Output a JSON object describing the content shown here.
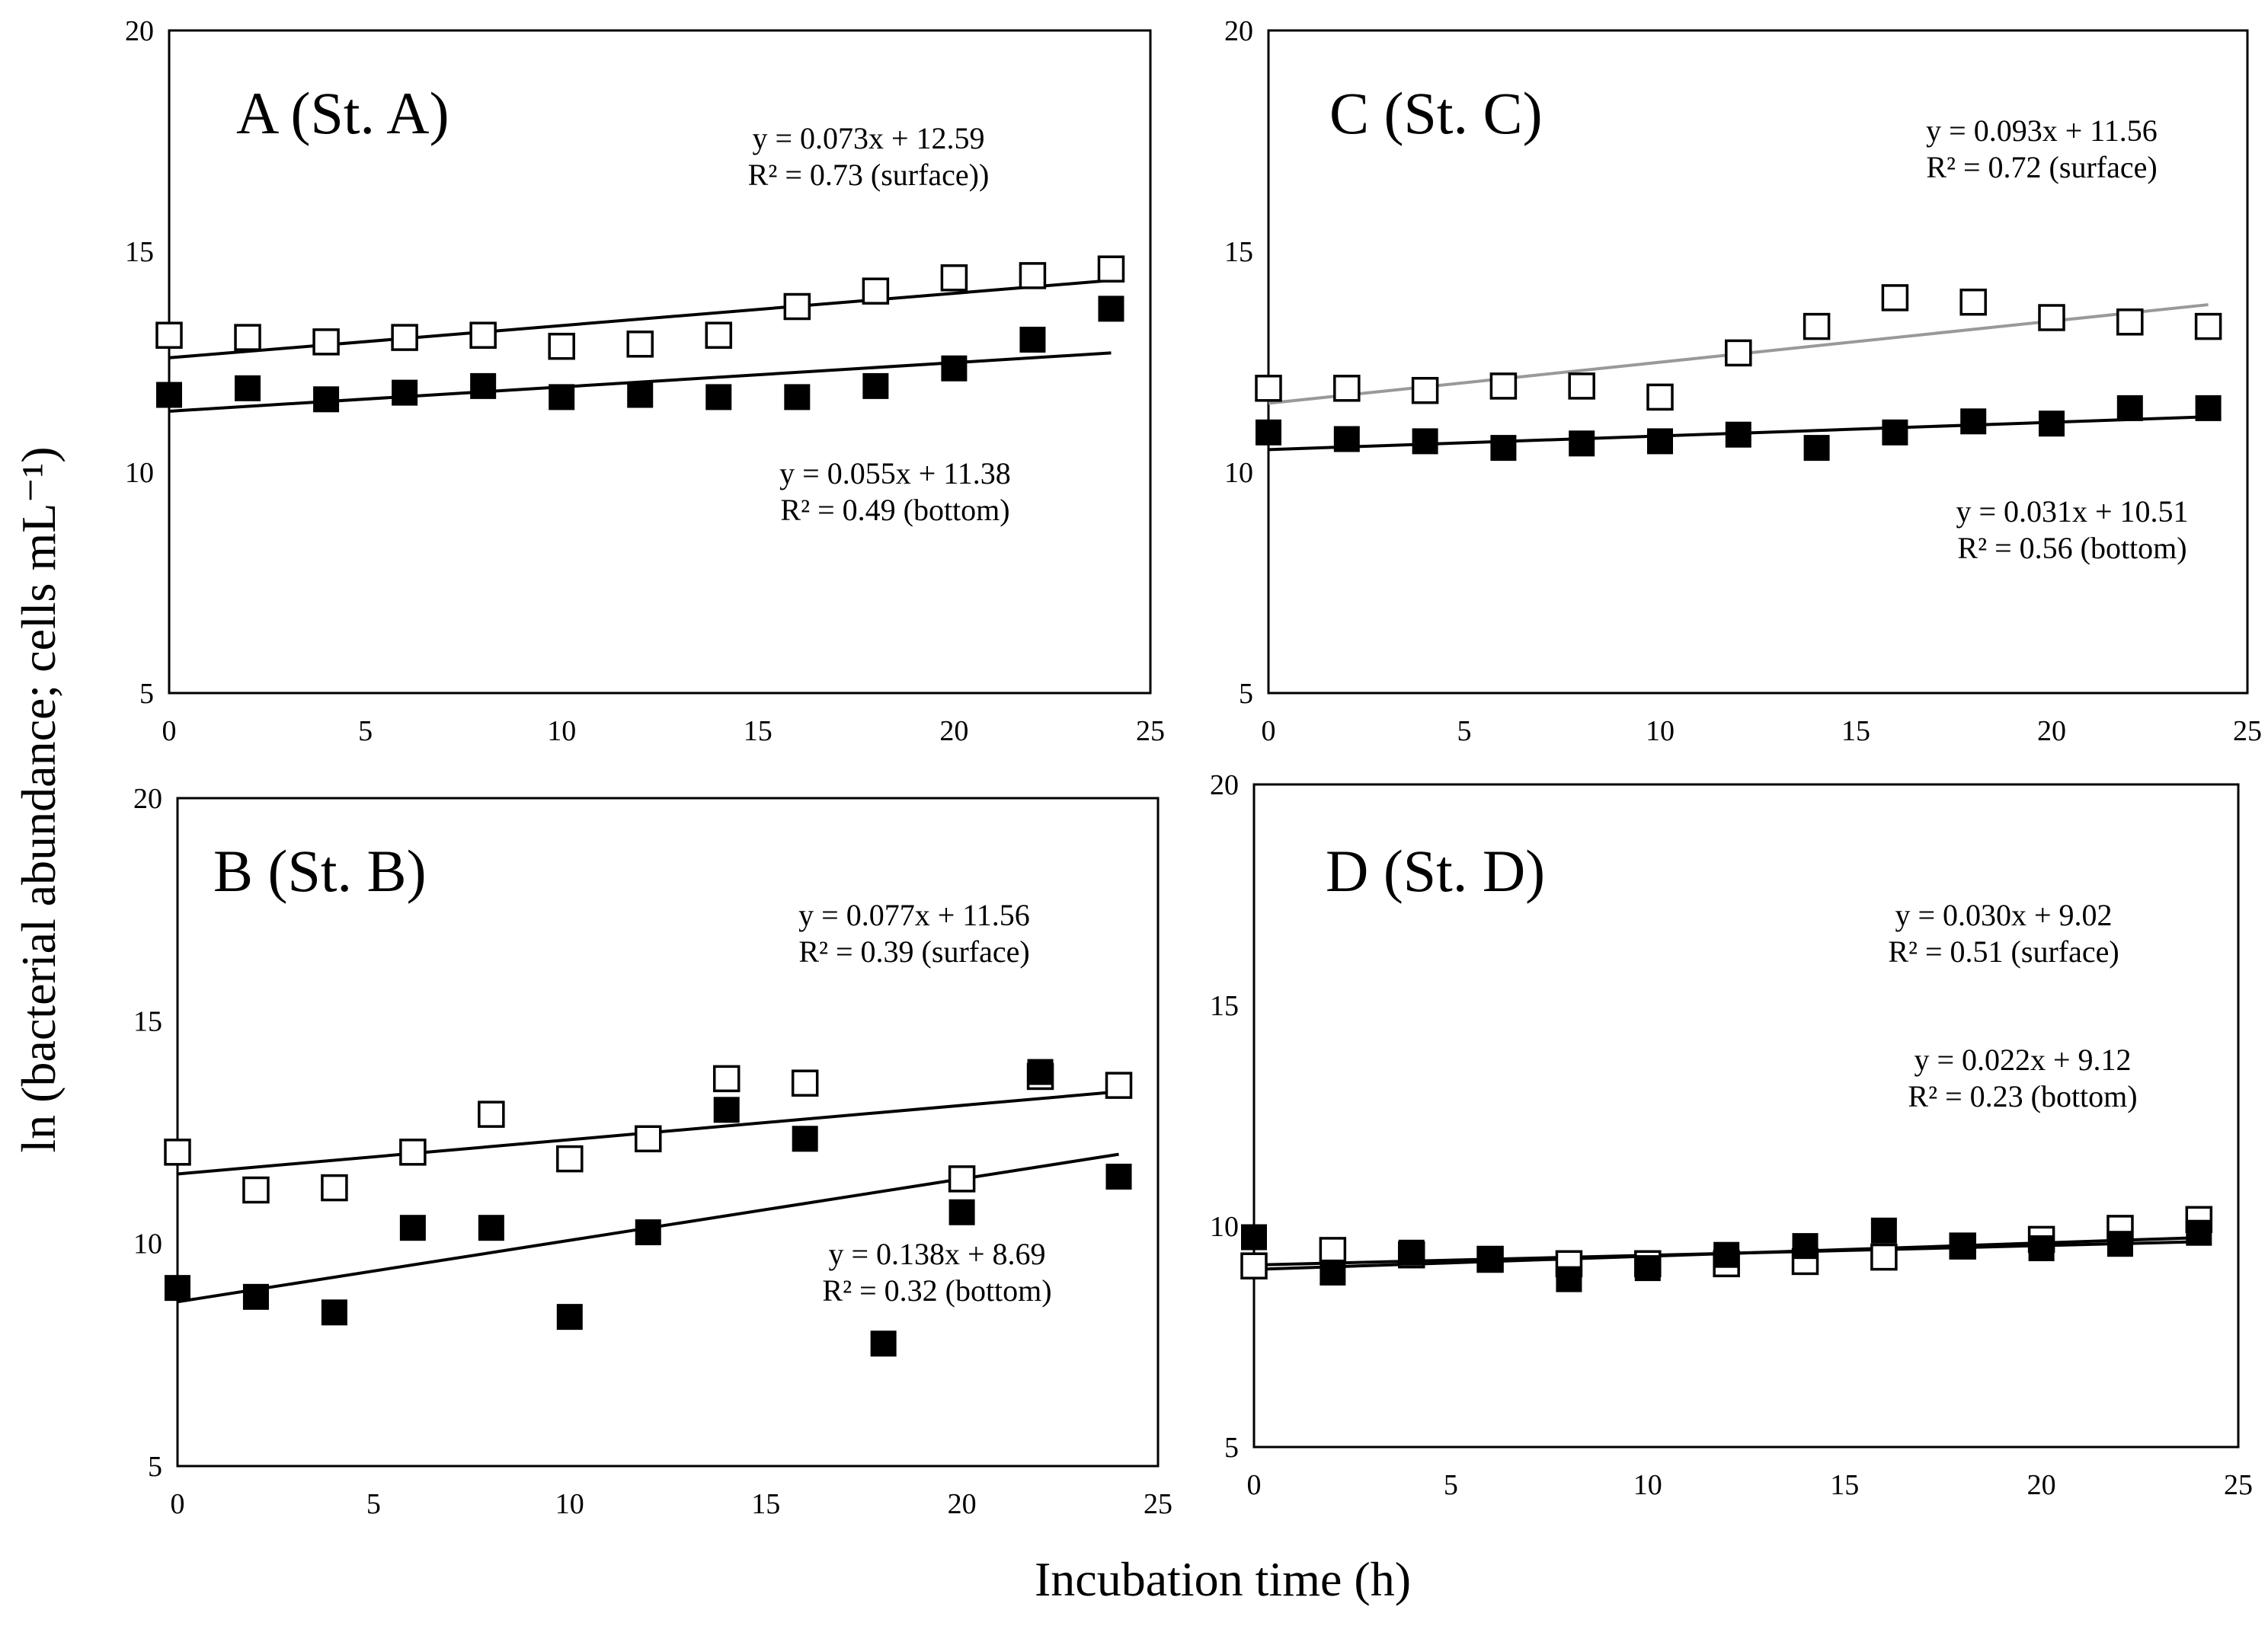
{
  "figure": {
    "ylabel": "ln (bacterial abundance; cells mL⁻¹)",
    "xlabel": "Incubation time (h)"
  },
  "chart_data": [
    {
      "id": "A",
      "type": "scatter",
      "title": "A (St. A)",
      "xlim": [
        0,
        25
      ],
      "ylim": [
        5,
        20
      ],
      "xticks": [
        0,
        5,
        10,
        15,
        20,
        25
      ],
      "yticks": [
        5,
        10,
        15,
        20
      ],
      "series": [
        {
          "name": "surface",
          "marker": "open-square",
          "x": [
            0,
            2,
            4,
            6,
            8,
            10,
            12,
            14,
            16,
            18,
            20,
            22,
            24
          ],
          "values": [
            13.1,
            13.05,
            12.95,
            13.05,
            13.1,
            12.85,
            12.9,
            13.1,
            13.75,
            14.1,
            14.4,
            14.45,
            14.6
          ],
          "fit": {
            "slope": 0.073,
            "intercept": 12.59,
            "color": "#000000"
          },
          "equation": "y = 0.073x + 12.59",
          "r2": "R² = 0.73 (surface))"
        },
        {
          "name": "bottom",
          "marker": "filled-square",
          "x": [
            0,
            2,
            4,
            6,
            8,
            10,
            12,
            14,
            16,
            18,
            20,
            22,
            24
          ],
          "values": [
            11.75,
            11.9,
            11.65,
            11.8,
            11.95,
            11.7,
            11.75,
            11.7,
            11.7,
            11.95,
            12.35,
            13.0,
            13.7
          ],
          "fit": {
            "slope": 0.055,
            "intercept": 11.38,
            "color": "#000000"
          },
          "equation": "y = 0.055x + 11.38",
          "r2": "R² = 0.49 (bottom)"
        }
      ]
    },
    {
      "id": "C",
      "type": "scatter",
      "title": "C (St. C)",
      "xlim": [
        0,
        25
      ],
      "ylim": [
        5,
        20
      ],
      "xticks": [
        0,
        5,
        10,
        15,
        20,
        25
      ],
      "yticks": [
        5,
        10,
        15,
        20
      ],
      "series": [
        {
          "name": "surface",
          "marker": "open-square",
          "x": [
            0,
            2,
            4,
            6,
            8,
            10,
            12,
            14,
            16,
            18,
            20,
            22,
            24
          ],
          "values": [
            11.9,
            11.9,
            11.85,
            11.95,
            11.95,
            11.7,
            12.7,
            13.3,
            13.95,
            13.85,
            13.5,
            13.4,
            13.3
          ],
          "fit": {
            "slope": 0.093,
            "intercept": 11.56,
            "color": "#999999"
          },
          "equation": "y = 0.093x + 11.56",
          "r2": "R² = 0.72 (surface)"
        },
        {
          "name": "bottom",
          "marker": "filled-square",
          "x": [
            0,
            2,
            4,
            6,
            8,
            10,
            12,
            14,
            16,
            18,
            20,
            22,
            24
          ],
          "values": [
            10.9,
            10.75,
            10.7,
            10.55,
            10.65,
            10.7,
            10.85,
            10.55,
            10.9,
            11.15,
            11.1,
            11.45,
            11.45
          ],
          "fit": {
            "slope": 0.031,
            "intercept": 10.51,
            "color": "#000000"
          },
          "equation": "y = 0.031x + 10.51",
          "r2": "R² = 0.56 (bottom)"
        }
      ]
    },
    {
      "id": "B",
      "type": "scatter",
      "title": "B (St. B)",
      "xlim": [
        0,
        25
      ],
      "ylim": [
        5,
        20
      ],
      "xticks": [
        0,
        5,
        10,
        15,
        20,
        25
      ],
      "yticks": [
        5,
        10,
        15,
        20
      ],
      "series": [
        {
          "name": "surface",
          "marker": "open-square",
          "x": [
            0,
            2,
            4,
            6,
            8,
            10,
            12,
            14,
            16,
            20,
            22,
            24
          ],
          "values": [
            12.05,
            11.2,
            11.25,
            12.05,
            12.9,
            11.9,
            12.35,
            13.7,
            13.6,
            11.45,
            13.75,
            13.55
          ],
          "fit": {
            "slope": 0.077,
            "intercept": 11.56,
            "color": "#000000"
          },
          "equation": "y = 0.077x + 11.56",
          "r2": "R² = 0.39 (surface)"
        },
        {
          "name": "bottom",
          "marker": "filled-square",
          "x": [
            0,
            2,
            4,
            6,
            8,
            10,
            12,
            14,
            16,
            18,
            20,
            22,
            24
          ],
          "values": [
            9.0,
            8.8,
            8.45,
            10.35,
            10.35,
            8.35,
            10.25,
            13.0,
            12.35,
            7.75,
            10.7,
            13.85,
            11.5
          ],
          "fit": {
            "slope": 0.138,
            "intercept": 8.69,
            "color": "#000000"
          },
          "equation": "y = 0.138x + 8.69",
          "r2": "R² = 0.32 (bottom)"
        }
      ]
    },
    {
      "id": "D",
      "type": "scatter",
      "title": "D (St. D)",
      "xlim": [
        0,
        25
      ],
      "ylim": [
        5,
        20
      ],
      "xticks": [
        0,
        5,
        10,
        15,
        20,
        25
      ],
      "yticks": [
        5,
        10,
        15,
        20
      ],
      "series": [
        {
          "name": "surface",
          "marker": "open-square",
          "x": [
            0,
            2,
            4,
            6,
            8,
            10,
            12,
            14,
            16,
            18,
            20,
            22,
            24
          ],
          "values": [
            9.1,
            9.45,
            9.35,
            9.25,
            9.15,
            9.15,
            9.15,
            9.2,
            9.3,
            9.55,
            9.7,
            9.95,
            10.15
          ],
          "fit": {
            "slope": 0.03,
            "intercept": 9.02,
            "color": "#000000"
          },
          "equation": "y = 0.030x + 9.02",
          "r2": "R² = 0.51 (surface)"
        },
        {
          "name": "bottom",
          "marker": "filled-square",
          "x": [
            0,
            2,
            4,
            6,
            8,
            10,
            12,
            14,
            16,
            18,
            20,
            22,
            24
          ],
          "values": [
            9.75,
            8.95,
            9.4,
            9.25,
            8.8,
            9.05,
            9.35,
            9.55,
            9.9,
            9.55,
            9.5,
            9.6,
            9.85
          ],
          "fit": {
            "slope": 0.022,
            "intercept": 9.12,
            "color": "#000000"
          },
          "equation": "y = 0.022x + 9.12",
          "r2": "R² = 0.23 (bottom)"
        }
      ]
    }
  ]
}
